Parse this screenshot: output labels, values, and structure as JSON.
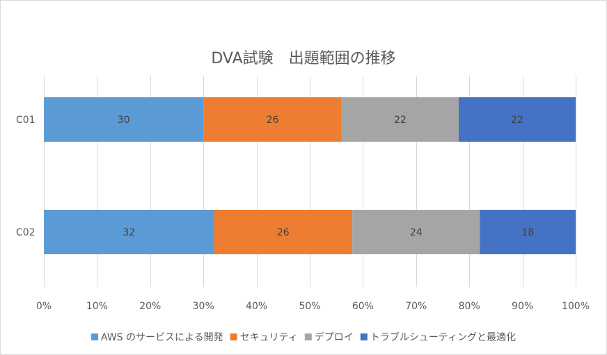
{
  "chart_data": {
    "type": "bar",
    "orientation": "horizontal",
    "stacking": "percent",
    "title": "DVA試験　出題範囲の推移",
    "categories": [
      "C01",
      "C02"
    ],
    "series": [
      {
        "name": "AWS のサービスによる開発",
        "values": [
          30,
          32
        ],
        "color": "#5b9bd5"
      },
      {
        "name": "セキュリティ",
        "values": [
          26,
          26
        ],
        "color": "#ed7d31"
      },
      {
        "name": "デプロイ",
        "values": [
          22,
          24
        ],
        "color": "#a5a5a5"
      },
      {
        "name": "トラブルシューティングと最適化",
        "values": [
          22,
          18
        ],
        "color": "#4472c4"
      }
    ],
    "x_ticks": [
      "0%",
      "10%",
      "20%",
      "30%",
      "40%",
      "50%",
      "60%",
      "70%",
      "80%",
      "90%",
      "100%"
    ],
    "xlim": [
      0,
      100
    ],
    "grid": true,
    "legend": "bottom"
  }
}
